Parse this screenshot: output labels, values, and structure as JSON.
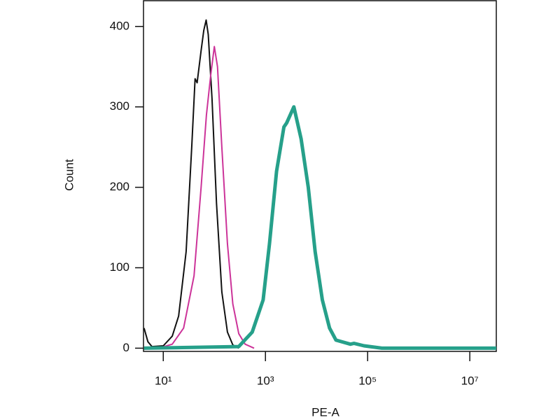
{
  "chart_data": {
    "type": "line",
    "xlabel": "PE-A",
    "ylabel": "Count",
    "xscale": "log",
    "xlim": [
      4.1,
      33000000
    ],
    "ylim": [
      -4,
      432
    ],
    "xticks": [
      {
        "value": 10,
        "label": "10¹"
      },
      {
        "value": 1000,
        "label": "10³"
      },
      {
        "value": 100000,
        "label": "10⁵"
      },
      {
        "value": 10000000,
        "label": "10⁷"
      }
    ],
    "yticks": [
      0,
      100,
      200,
      300,
      400
    ],
    "series": [
      {
        "color": "#111111",
        "width": 2,
        "x": [
          4.2,
          5,
          6,
          10,
          15,
          20,
          28,
          36,
          42,
          46,
          55,
          62,
          69,
          76,
          90,
          110,
          140,
          180,
          230,
          300
        ],
        "values": [
          25,
          8,
          2,
          3,
          15,
          40,
          120,
          250,
          335,
          330,
          370,
          395,
          408,
          390,
          310,
          180,
          70,
          20,
          4,
          0
        ]
      },
      {
        "color": "#cc3399",
        "width": 2,
        "x": [
          8,
          15,
          25,
          40,
          55,
          70,
          85,
          100,
          115,
          140,
          180,
          230,
          300,
          400,
          600
        ],
        "values": [
          0,
          5,
          25,
          90,
          200,
          290,
          340,
          375,
          350,
          250,
          130,
          55,
          18,
          5,
          0
        ]
      },
      {
        "color": "#26a08a",
        "width": 5,
        "x": [
          4.2,
          300,
          550,
          900,
          1200,
          1650,
          2300,
          2600,
          3600,
          5000,
          6900,
          9400,
          13000,
          18000,
          24000,
          46000,
          54000,
          85000,
          190000,
          33000000
        ],
        "values": [
          0,
          2,
          20,
          60,
          130,
          220,
          275,
          280,
          300,
          260,
          200,
          120,
          60,
          25,
          10,
          5,
          6,
          3,
          0,
          0
        ]
      }
    ]
  }
}
